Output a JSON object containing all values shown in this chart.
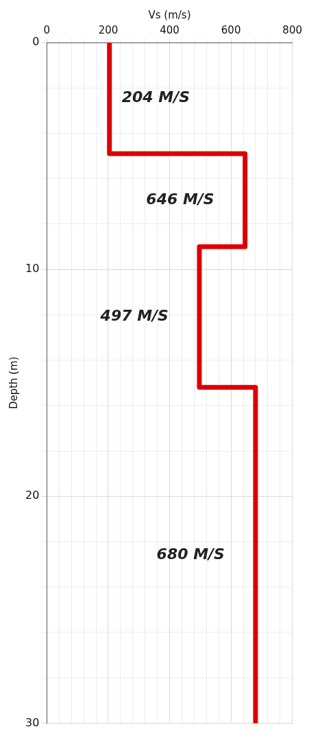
{
  "chart_data": {
    "type": "line",
    "xlabel": "Vs (m/s)",
    "ylabel": "Depth (m)",
    "series": [
      {
        "color": "#dd0000",
        "x": [
          204,
          204,
          646,
          646,
          497,
          497,
          680,
          680
        ],
        "values": [
          0,
          4.9,
          4.9,
          9,
          9,
          15.2,
          15.2,
          30
        ]
      }
    ],
    "xlim": [
      0,
      800
    ],
    "xticks": [
      0,
      {
        "value": 40,
        "label": null
      },
      {
        "value": 80,
        "label": null
      },
      {
        "value": 120,
        "label": null
      },
      {
        "value": 160,
        "label": null
      },
      200,
      {
        "value": 240,
        "label": null
      },
      {
        "value": 280,
        "label": null
      },
      {
        "value": 320,
        "label": null
      },
      {
        "value": 360,
        "label": null
      },
      400,
      {
        "value": 440,
        "label": null
      },
      {
        "value": 480,
        "label": null
      },
      {
        "value": 520,
        "label": null
      },
      {
        "value": 560,
        "label": null
      },
      600,
      {
        "value": 640,
        "label": null
      },
      {
        "value": 680,
        "label": null
      },
      {
        "value": 720,
        "label": null
      },
      {
        "value": 760,
        "label": null
      },
      800
    ],
    "ylim": [
      30,
      0
    ],
    "yticks": [
      0,
      {
        "value": 2,
        "label": null
      },
      {
        "value": 4,
        "label": null
      },
      {
        "value": 6,
        "label": null
      },
      {
        "value": 8,
        "label": null
      },
      10,
      {
        "value": 12,
        "label": null
      },
      {
        "value": 14,
        "label": null
      },
      {
        "value": 16,
        "label": null
      },
      {
        "value": 18,
        "label": null
      },
      20,
      {
        "value": 22,
        "label": null
      },
      {
        "value": 24,
        "label": null
      },
      {
        "value": 26,
        "label": null
      },
      {
        "value": 28,
        "label": null
      },
      30
    ],
    "grid": true,
    "legend": false,
    "marker": "none",
    "line_style": "solid",
    "annotations": [
      "204 M/S",
      "646 M/S",
      "497 M/S",
      "680 M/S"
    ]
  }
}
